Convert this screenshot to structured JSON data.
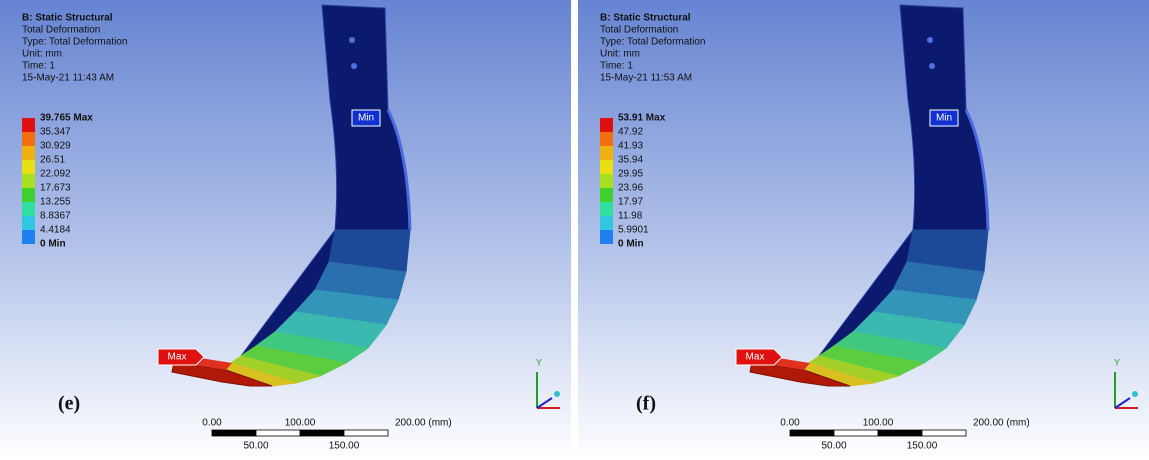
{
  "panels": [
    {
      "header": [
        "B: Static Structural",
        "Total Deformation",
        "Type: Total Deformation",
        "Unit: mm",
        "Time: 1",
        "15-May-21 11:43 AM"
      ],
      "legend": [
        "39.765 Max",
        "35.347",
        "30.929",
        "26.51",
        "22.092",
        "17.673",
        "13.255",
        "8.8367",
        "4.4184",
        "0 Min"
      ],
      "min_tag": "Min",
      "max_tag": "Max",
      "label": "(e)",
      "scale_top": [
        "0.00",
        "100.00",
        "200.00 (mm)"
      ],
      "scale_bottom": [
        "50.00",
        "150.00"
      ],
      "axis": "Y"
    },
    {
      "header": [
        "B: Static Structural",
        "Total Deformation",
        "Type: Total Deformation",
        "Unit: mm",
        "Time: 1",
        "15-May-21 11:53 AM"
      ],
      "legend": [
        "53.91 Max",
        "47.92",
        "41.93",
        "35.94",
        "29.95",
        "23.96",
        "17.97",
        "11.98",
        "5.9901",
        "0 Min"
      ],
      "min_tag": "Min",
      "max_tag": "Max",
      "label": "(f)",
      "scale_top": [
        "0.00",
        "100.00",
        "200.00 (mm)"
      ],
      "scale_bottom": [
        "50.00",
        "150.00"
      ],
      "axis": "Y"
    }
  ]
}
